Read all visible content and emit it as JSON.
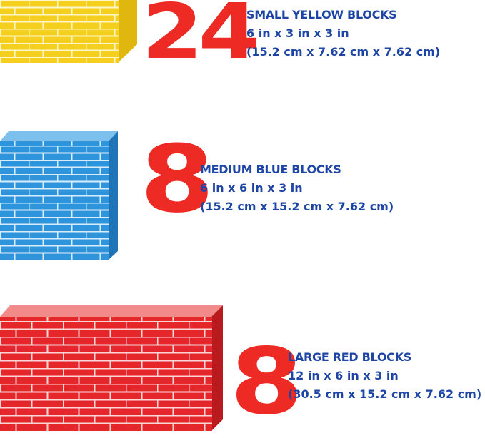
{
  "groups": [
    {
      "count": "24",
      "title": "SMALL YELLOW BLOCKS",
      "imperial": "6 in x 3 in x 3 in",
      "metric": "(15.2 cm x 7.62 cm x 7.62 cm)",
      "color": "#f5cf1e"
    },
    {
      "count": "8",
      "title": "MEDIUM BLUE BLOCKS",
      "imperial": "6 in x 6 in x 3 in",
      "metric": "(15.2 cm x 15.2 cm x 7.62 cm)",
      "color": "#2e95dc"
    },
    {
      "count": "8",
      "title": "LARGE RED BLOCKS",
      "imperial": "12 in x 6 in x 3 in",
      "metric": "(30.5 cm x 15.2 cm x 7.62 cm)",
      "color": "#e5262a"
    }
  ],
  "colors": {
    "count": "#ee2a24",
    "text": "#1d45a6"
  }
}
